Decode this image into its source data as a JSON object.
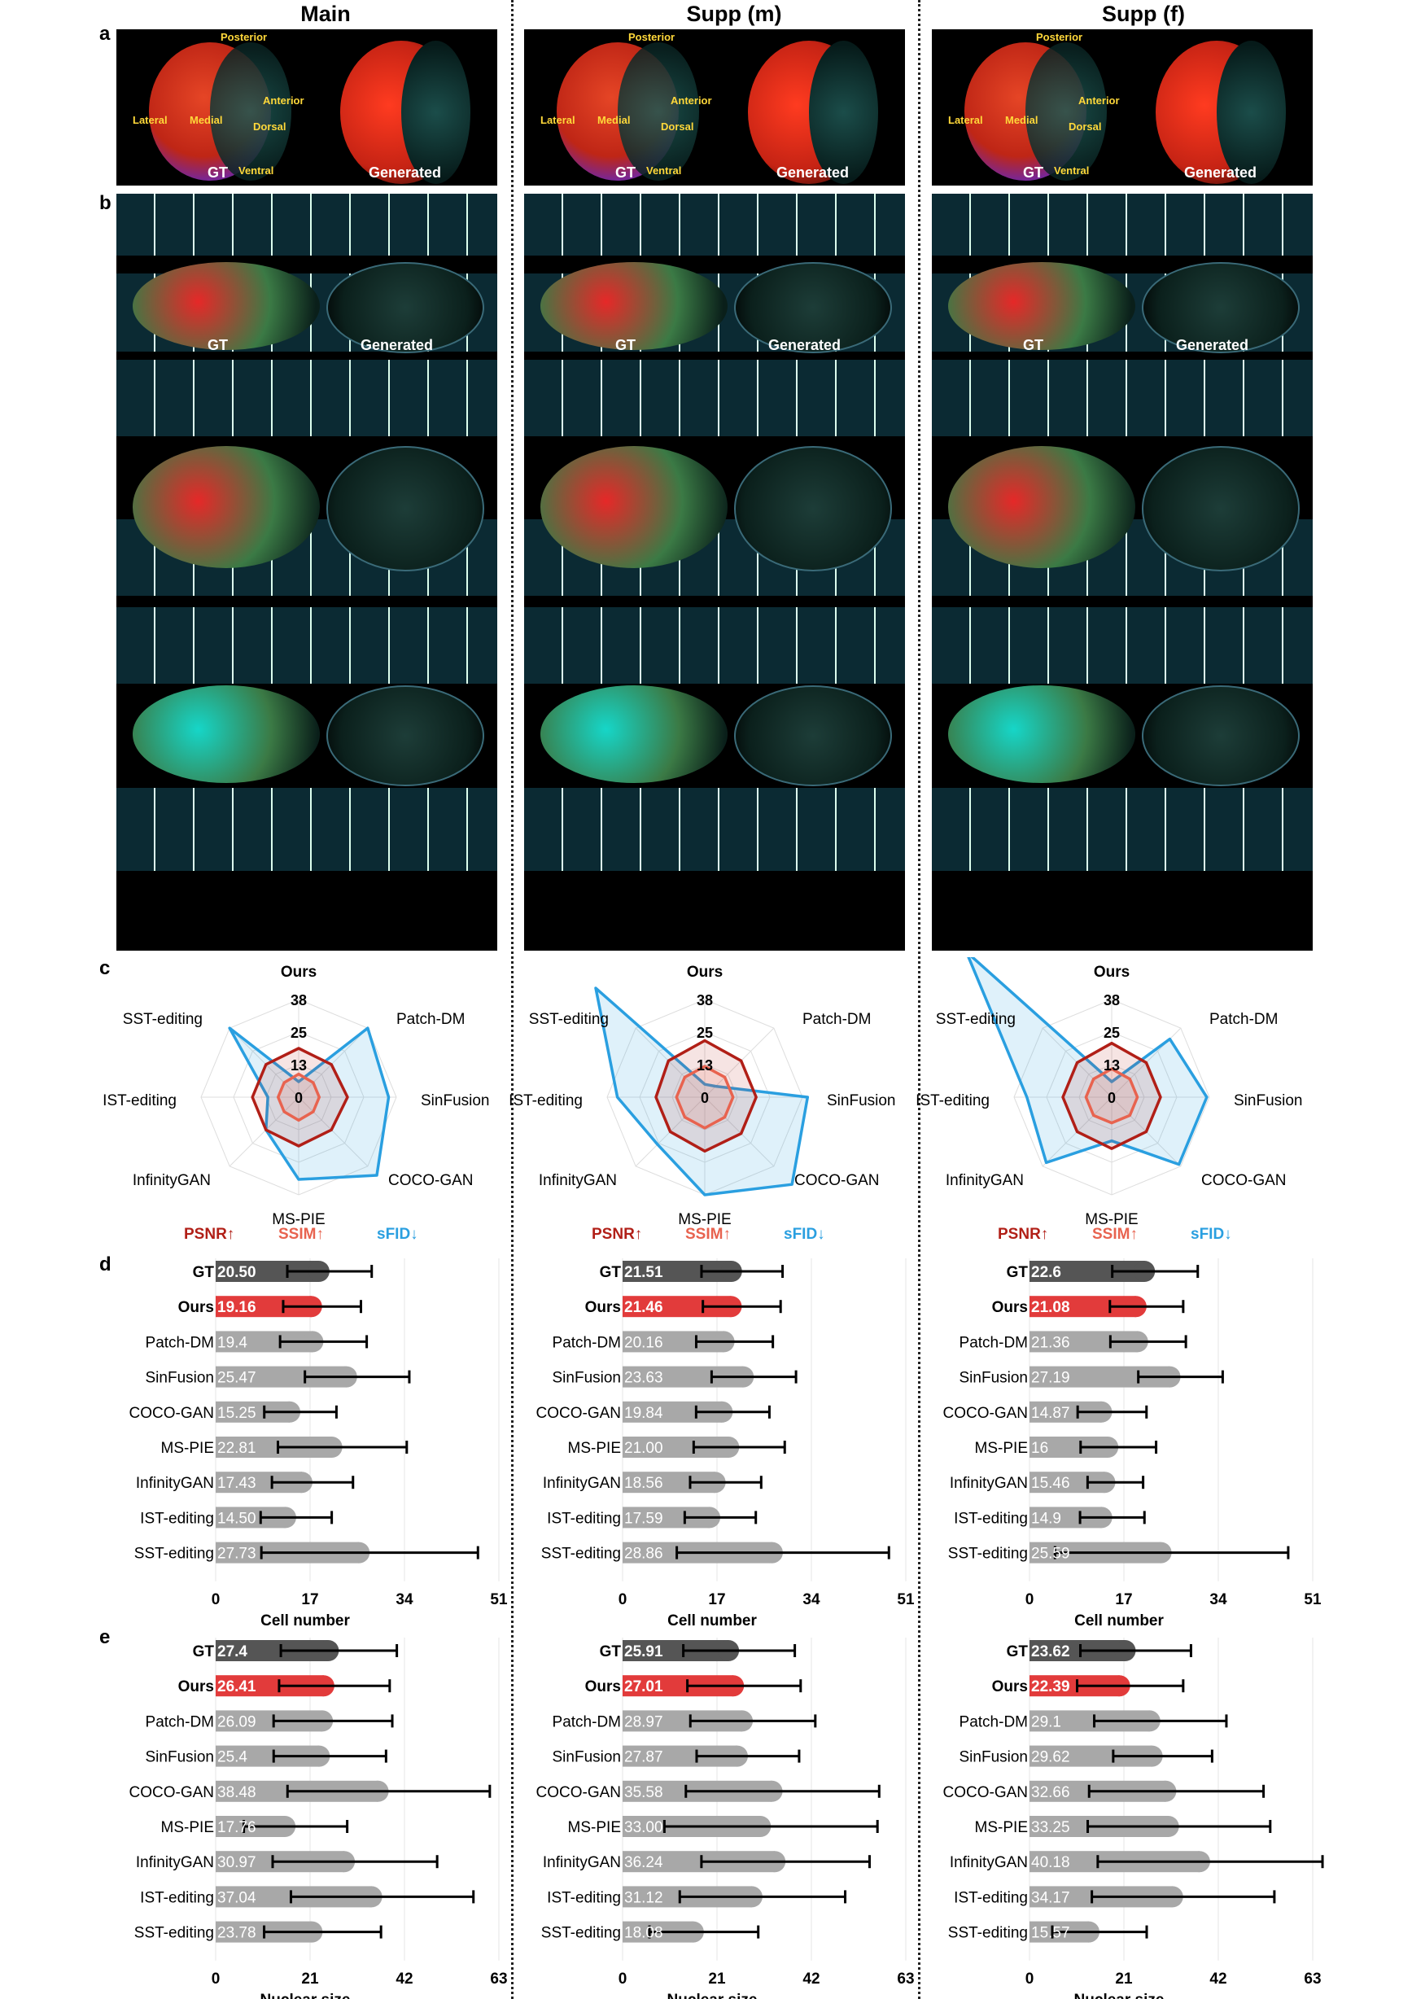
{
  "columns": [
    "Main",
    "Supp (m)",
    "Supp (f)"
  ],
  "panel_letters": [
    "a",
    "b",
    "c",
    "d",
    "e"
  ],
  "brain_labels": {
    "gt": "GT",
    "generated": "Generated",
    "directions": [
      "Posterior",
      "Anterior",
      "Lateral",
      "Medial",
      "Dorsal",
      "Ventral"
    ]
  },
  "legend": {
    "psnr": "PSNR↑",
    "ssim": "SSIM↑",
    "sfid": "sFID↓"
  },
  "colors": {
    "psnr": "#b11f17",
    "ssim": "#e8634f",
    "sfid": "#2a9fe0",
    "gt_bar": "#555555",
    "ours_bar": "#e23b3b",
    "other_bar": "#a8a8a8"
  },
  "chart_data": [
    {
      "type": "radar",
      "panel": "c",
      "column": "Main",
      "axes": [
        "Ours",
        "Patch-DM",
        "SinFusion",
        "COCO-GAN",
        "MS-PIE",
        "InfinityGAN",
        "IST-editing",
        "SST-editing"
      ],
      "ticks": [
        "38",
        "25",
        "13",
        "0"
      ],
      "rmax": 38,
      "series": [
        {
          "name": "PSNR↑",
          "values": [
            19,
            18,
            19,
            18,
            19,
            18,
            18,
            18
          ]
        },
        {
          "name": "SSIM↑",
          "values": [
            9,
            8,
            8,
            8,
            9,
            8,
            8,
            8
          ]
        },
        {
          "name": "sFID↓",
          "values": [
            6,
            38,
            35,
            43,
            32,
            18,
            12,
            38
          ]
        }
      ]
    },
    {
      "type": "radar",
      "panel": "c",
      "column": "Supp (m)",
      "axes": [
        "Ours",
        "Patch-DM",
        "SinFusion",
        "COCO-GAN",
        "MS-PIE",
        "InfinityGAN",
        "IST-editing",
        "SST-editing"
      ],
      "ticks": [
        "38",
        "25",
        "13",
        "0"
      ],
      "rmax": 38,
      "series": [
        {
          "name": "PSNR↑",
          "values": [
            22,
            20,
            20,
            20,
            21,
            19,
            19,
            20
          ]
        },
        {
          "name": "SSIM↑",
          "values": [
            12,
            11,
            11,
            11,
            12,
            11,
            11,
            11
          ]
        },
        {
          "name": "sFID↓",
          "values": [
            5,
            6,
            40,
            48,
            38,
            26,
            34,
            60
          ]
        }
      ]
    },
    {
      "type": "radar",
      "panel": "c",
      "column": "Supp (f)",
      "axes": [
        "Ours",
        "Patch-DM",
        "SinFusion",
        "COCO-GAN",
        "MS-PIE",
        "InfinityGAN",
        "IST-editing",
        "SST-editing"
      ],
      "ticks": [
        "38",
        "25",
        "13",
        "0"
      ],
      "rmax": 38,
      "series": [
        {
          "name": "PSNR↑",
          "values": [
            21,
            19,
            19,
            19,
            20,
            19,
            19,
            19
          ]
        },
        {
          "name": "SSIM↑",
          "values": [
            11,
            10,
            10,
            10,
            10,
            10,
            10,
            10
          ]
        },
        {
          "name": "sFID↓",
          "values": [
            6,
            32,
            37,
            37,
            17,
            36,
            33,
            80
          ]
        }
      ]
    },
    {
      "type": "bar",
      "panel": "d",
      "column": "Main",
      "xlabel": "Cell number",
      "xticks": [
        0,
        17,
        34,
        51
      ],
      "xlim": [
        0,
        51
      ],
      "categories": [
        "GT",
        "Ours",
        "Patch-DM",
        "SinFusion",
        "COCO-GAN",
        "MS-PIE",
        "InfinityGAN",
        "IST-editing",
        "SST-editing"
      ],
      "labels": [
        "20.50",
        "19.16",
        "19.4",
        "25.47",
        "15.25",
        "22.81",
        "17.43",
        "14.50",
        "27.73"
      ],
      "values": [
        20.5,
        19.16,
        19.4,
        25.47,
        15.25,
        22.81,
        17.43,
        14.5,
        27.73
      ],
      "errors": [
        7.6,
        7.0,
        7.8,
        9.4,
        6.5,
        11.6,
        7.3,
        6.4,
        19.5
      ]
    },
    {
      "type": "bar",
      "panel": "d",
      "column": "Supp (m)",
      "xlabel": "Cell number",
      "xticks": [
        0,
        17,
        34,
        51
      ],
      "xlim": [
        0,
        51
      ],
      "categories": [
        "GT",
        "Ours",
        "Patch-DM",
        "SinFusion",
        "COCO-GAN",
        "MS-PIE",
        "InfinityGAN",
        "IST-editing",
        "SST-editing"
      ],
      "labels": [
        "21.51",
        "21.46",
        "20.16",
        "23.63",
        "19.84",
        "21.00",
        "18.56",
        "17.59",
        "28.86"
      ],
      "values": [
        21.51,
        21.46,
        20.16,
        23.63,
        19.84,
        21.0,
        18.56,
        17.59,
        28.86
      ],
      "errors": [
        7.3,
        7.0,
        6.9,
        7.6,
        6.6,
        8.2,
        6.4,
        6.4,
        19.1
      ]
    },
    {
      "type": "bar",
      "panel": "d",
      "column": "Supp (f)",
      "xlabel": "Cell number",
      "xticks": [
        0,
        17,
        34,
        51
      ],
      "xlim": [
        0,
        51
      ],
      "categories": [
        "GT",
        "Ours",
        "Patch-DM",
        "SinFusion",
        "COCO-GAN",
        "MS-PIE",
        "InfinityGAN",
        "IST-editing",
        "SST-editing"
      ],
      "labels": [
        "22.6",
        "21.08",
        "21.36",
        "27.19",
        "14.87",
        "16",
        "15.46",
        "14.9",
        "25.59"
      ],
      "values": [
        22.6,
        21.08,
        21.36,
        27.19,
        14.87,
        16.0,
        15.46,
        14.9,
        25.59
      ],
      "errors": [
        7.7,
        6.6,
        6.8,
        7.6,
        6.2,
        6.8,
        5.0,
        5.8,
        21.0
      ]
    },
    {
      "type": "bar",
      "panel": "e",
      "column": "Main",
      "xlabel": "Nuclear size",
      "xticks": [
        0,
        21,
        42,
        63
      ],
      "xlim": [
        0,
        63
      ],
      "categories": [
        "GT",
        "Ours",
        "Patch-DM",
        "SinFusion",
        "COCO-GAN",
        "MS-PIE",
        "InfinityGAN",
        "IST-editing",
        "SST-editing"
      ],
      "labels": [
        "27.4",
        "26.41",
        "26.09",
        "25.4",
        "38.48",
        "17.76",
        "30.97",
        "37.04",
        "23.78"
      ],
      "values": [
        27.4,
        26.41,
        26.09,
        25.4,
        38.48,
        17.76,
        30.97,
        37.04,
        23.78
      ],
      "errors": [
        12.9,
        12.3,
        13.2,
        12.5,
        22.5,
        11.5,
        18.3,
        20.3,
        13.0
      ]
    },
    {
      "type": "bar",
      "panel": "e",
      "column": "Supp (m)",
      "xlabel": "Nuclear size",
      "xticks": [
        0,
        21,
        42,
        63
      ],
      "xlim": [
        0,
        63
      ],
      "categories": [
        "GT",
        "Ours",
        "Patch-DM",
        "SinFusion",
        "COCO-GAN",
        "MS-PIE",
        "InfinityGAN",
        "IST-editing",
        "SST-editing"
      ],
      "labels": [
        "25.91",
        "27.01",
        "28.97",
        "27.87",
        "35.58",
        "33.00",
        "36.24",
        "31.12",
        "18.08"
      ],
      "values": [
        25.91,
        27.01,
        28.97,
        27.87,
        35.58,
        33.0,
        36.24,
        31.12,
        18.08
      ],
      "errors": [
        12.4,
        12.6,
        13.9,
        11.4,
        21.5,
        23.7,
        18.7,
        18.4,
        12.1
      ]
    },
    {
      "type": "bar",
      "panel": "e",
      "column": "Supp (f)",
      "xlabel": "Nuclear size",
      "xticks": [
        0,
        21,
        42,
        63
      ],
      "xlim": [
        0,
        63
      ],
      "categories": [
        "GT",
        "Ours",
        "Patch-DM",
        "SinFusion",
        "COCO-GAN",
        "MS-PIE",
        "InfinityGAN",
        "IST-editing",
        "SST-editing"
      ],
      "labels": [
        "23.62",
        "22.39",
        "29.1",
        "29.62",
        "32.66",
        "33.25",
        "40.18",
        "34.17",
        "15.57"
      ],
      "values": [
        23.62,
        22.39,
        29.1,
        29.62,
        32.66,
        33.25,
        40.18,
        34.17,
        15.57
      ],
      "errors": [
        12.3,
        11.8,
        14.7,
        11.0,
        19.4,
        20.3,
        25.0,
        20.3,
        10.5
      ]
    }
  ]
}
